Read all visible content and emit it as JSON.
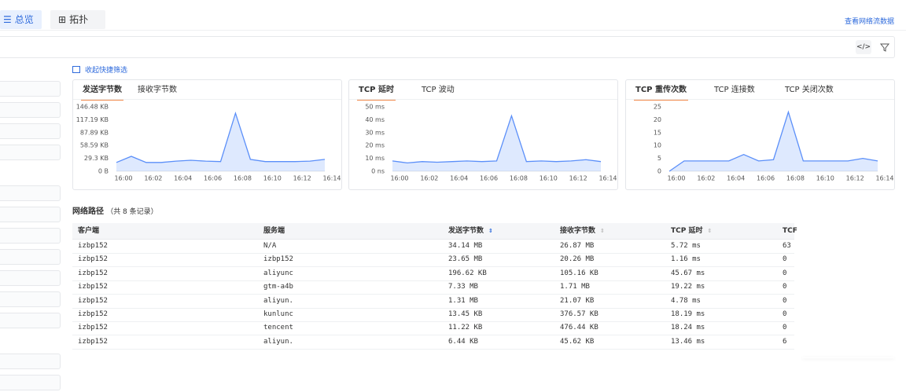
{
  "nav": {
    "tabs": [
      "总览",
      "拓扑"
    ],
    "link": "查看网络流数据"
  },
  "filter_toggle": "收起快捷筛选",
  "chart_data": [
    {
      "type": "area",
      "tabs": [
        "发送字节数",
        "接收字节数"
      ],
      "active_tab": 0,
      "color": "#5b8ff9",
      "x": [
        "16:00",
        null,
        "16:02",
        null,
        "16:04",
        null,
        "16:06",
        null,
        "16:08",
        null,
        "16:10",
        null,
        "16:12",
        null,
        "16:14"
      ],
      "values": [
        20,
        34,
        20,
        20,
        23,
        25,
        23,
        22,
        132,
        27,
        22,
        22,
        22,
        23,
        27
      ],
      "ylim": [
        0,
        146.48
      ],
      "yticks": [
        {
          "value": 0,
          "label": "0 B"
        },
        {
          "value": 29.3,
          "label": "29.3 KB"
        },
        {
          "value": 58.59,
          "label": "58.59 KB"
        },
        {
          "value": 87.89,
          "label": "87.89 KB"
        },
        {
          "value": 117.19,
          "label": "117.19 KB"
        },
        {
          "value": 146.48,
          "label": "146.48 KB"
        }
      ]
    },
    {
      "type": "area",
      "tabs": [
        "TCP 延时",
        "TCP 波动"
      ],
      "active_tab": 0,
      "color": "#5b8ff9",
      "x": [
        "16:00",
        null,
        "16:02",
        null,
        "16:04",
        null,
        "16:06",
        null,
        "16:08",
        null,
        "16:10",
        null,
        "16:12",
        null,
        "16:14"
      ],
      "values": [
        8,
        6.5,
        7.5,
        7,
        7.5,
        8,
        7.5,
        8,
        43,
        7.5,
        8,
        7.5,
        8,
        9,
        7.5
      ],
      "ylim": [
        0,
        50
      ],
      "yticks": [
        {
          "value": 0,
          "label": "0 ns"
        },
        {
          "value": 10,
          "label": "10 ms"
        },
        {
          "value": 20,
          "label": "20 ms"
        },
        {
          "value": 30,
          "label": "30 ms"
        },
        {
          "value": 40,
          "label": "40 ms"
        },
        {
          "value": 50,
          "label": "50 ms"
        }
      ]
    },
    {
      "type": "area",
      "tabs": [
        "TCP 重传次数",
        "TCP 连接数",
        "TCP 关闭次数"
      ],
      "active_tab": 0,
      "color": "#5b8ff9",
      "x": [
        "16:00",
        null,
        "16:02",
        null,
        "16:04",
        null,
        "16:06",
        null,
        "16:08",
        null,
        "16:10",
        null,
        "16:12",
        null,
        "16:14"
      ],
      "values": [
        0,
        4,
        4,
        4,
        4,
        6.5,
        4,
        4.5,
        23,
        4,
        4,
        4,
        4,
        5,
        4
      ],
      "ylim": [
        0,
        25
      ],
      "yticks": [
        0,
        5,
        10,
        15,
        20,
        25
      ]
    }
  ],
  "section": {
    "title": "网络路径",
    "count": "（共 8 条记录）"
  },
  "table": {
    "columns": [
      "客户端",
      "服务端",
      "发送字节数",
      "接收字节数",
      "TCP 延时",
      "TCF"
    ],
    "rows": [
      [
        "izbp152",
        "N/A",
        "34.14 MB",
        "26.87 MB",
        "5.72 ms",
        "63"
      ],
      [
        "izbp152",
        "izbp152",
        "23.65 MB",
        "20.26 MB",
        "1.16 ms",
        "0"
      ],
      [
        "izbp152",
        "aliyunc",
        "196.62 KB",
        "105.16 KB",
        "45.67 ms",
        "0"
      ],
      [
        "izbp152",
        "gtm-a4b",
        "7.33 MB",
        "1.71 MB",
        "19.22 ms",
        "0"
      ],
      [
        "izbp152",
        "aliyun.",
        "1.31 MB",
        "21.07 KB",
        "4.78 ms",
        "0"
      ],
      [
        "izbp152",
        "kunlunc",
        "13.45 KB",
        "376.57 KB",
        "18.19 ms",
        "0"
      ],
      [
        "izbp152",
        "tencent",
        "11.22 KB",
        "476.44 KB",
        "18.24 ms",
        "0"
      ],
      [
        "izbp152",
        "aliyun.",
        "6.44 KB",
        "45.62 KB",
        "13.46 ms",
        "6"
      ]
    ]
  }
}
